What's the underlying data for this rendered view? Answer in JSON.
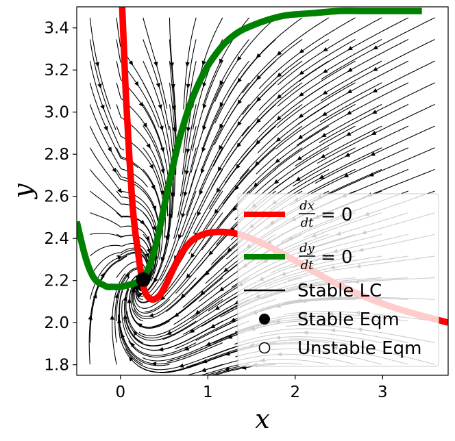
{
  "chart_data": {
    "type": "phase-portrait",
    "xlabel": "x",
    "ylabel": "y",
    "xlim": [
      -0.5,
      3.75
    ],
    "ylim": [
      1.75,
      3.5
    ],
    "x_ticks": [
      0,
      1,
      2,
      3
    ],
    "y_ticks": [
      1.8,
      2.0,
      2.2,
      2.4,
      2.6,
      2.8,
      3.0,
      3.2,
      3.4
    ],
    "grid": false,
    "background": "streamlines of the vector field with arrowheads (black)",
    "series": [
      {
        "name": "dx/dt = 0",
        "type": "nullcline",
        "color": "#ff0000",
        "x": [
          0.02,
          0.04,
          0.06,
          0.08,
          0.1,
          0.12,
          0.14,
          0.17,
          0.2,
          0.23,
          0.27,
          0.32,
          0.38,
          0.45,
          0.52,
          0.6,
          0.7,
          0.82,
          0.95,
          1.08,
          1.2,
          1.35,
          1.55,
          1.8,
          2.1,
          2.4,
          2.7,
          3.0,
          3.3,
          3.75
        ],
        "y": [
          3.5,
          3.3,
          3.1,
          2.95,
          2.8,
          2.67,
          2.55,
          2.43,
          2.34,
          2.25,
          2.16,
          2.12,
          2.11,
          2.13,
          2.18,
          2.25,
          2.33,
          2.39,
          2.42,
          2.43,
          2.43,
          2.42,
          2.39,
          2.34,
          2.27,
          2.2,
          2.14,
          2.09,
          2.05,
          2.0
        ]
      },
      {
        "name": "dy/dt = 0",
        "type": "nullcline",
        "color": "#008000",
        "x": [
          -0.5,
          -0.45,
          -0.4,
          -0.35,
          -0.3,
          -0.25,
          -0.2,
          -0.15,
          -0.1,
          0.0,
          0.1,
          0.18,
          0.25,
          0.3,
          0.35,
          0.4,
          0.45,
          0.5,
          0.55,
          0.6,
          0.65,
          0.7,
          0.8,
          0.9,
          1.0,
          1.1,
          1.2,
          1.35,
          1.5,
          1.7,
          1.9,
          2.2,
          2.5,
          2.8,
          3.1,
          3.45
        ],
        "y": [
          2.48,
          2.39,
          2.31,
          2.25,
          2.21,
          2.19,
          2.18,
          2.17,
          2.17,
          2.17,
          2.18,
          2.19,
          2.21,
          2.24,
          2.29,
          2.36,
          2.45,
          2.55,
          2.65,
          2.74,
          2.83,
          2.91,
          3.04,
          3.14,
          3.22,
          3.28,
          3.33,
          3.38,
          3.41,
          3.44,
          3.46,
          3.47,
          3.48,
          3.48,
          3.48,
          3.48
        ]
      },
      {
        "name": "Stable LC",
        "type": "limit-cycle",
        "color": "#000000",
        "x": [],
        "y": []
      },
      {
        "name": "Stable Eqm",
        "type": "point",
        "color": "#000000",
        "x": [
          0.26
        ],
        "y": [
          2.205
        ]
      },
      {
        "name": "Unstable Eqm",
        "type": "point",
        "color": "#ffffff",
        "x": [],
        "y": []
      }
    ],
    "legend": {
      "position": "bottom-right",
      "entries": [
        {
          "numerator": "dx",
          "denominator": "dt",
          "suffix": "= 0",
          "color": "#ff0000",
          "marker": "line"
        },
        {
          "numerator": "dy",
          "denominator": "dt",
          "suffix": "= 0",
          "color": "#008000",
          "marker": "line"
        },
        {
          "label": "Stable LC",
          "color": "#000000",
          "marker": "thin-line"
        },
        {
          "label": "Stable Eqm",
          "color": "#000000",
          "marker": "filled-circle"
        },
        {
          "label": "Unstable Eqm",
          "color": "#000000",
          "marker": "open-circle"
        }
      ]
    }
  }
}
